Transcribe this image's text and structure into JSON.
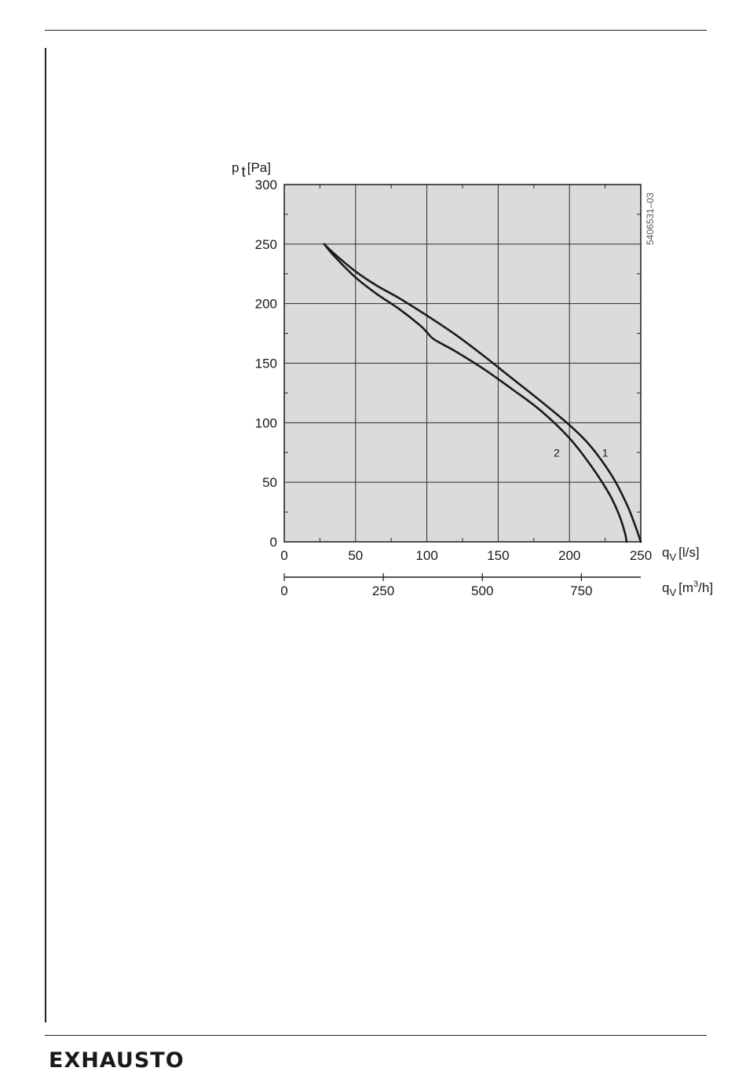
{
  "brand": {
    "logo_text": "EXHAUSTO"
  },
  "chart_data": {
    "type": "line",
    "figure_code": "5406531–03",
    "y_axis": {
      "label_main": "p",
      "label_sub": "t",
      "label_unit": "[Pa]",
      "ticks": [
        0,
        50,
        100,
        150,
        200,
        250,
        300
      ],
      "ylim": [
        0,
        300
      ]
    },
    "x_axis": {
      "label_main": "q",
      "label_sub": "V",
      "label_unit": "[l/s]",
      "ticks": [
        0,
        50,
        100,
        150,
        200,
        250
      ],
      "xlim": [
        0,
        250
      ]
    },
    "x_axis_secondary": {
      "label_main": "q",
      "label_sub": "V",
      "label_unit_pre": "[m",
      "label_unit_sup": "3",
      "label_unit_post": "/h]",
      "ticks": [
        0,
        250,
        500,
        750
      ],
      "xlim": [
        0,
        900
      ]
    },
    "grid": true,
    "series": [
      {
        "name": "1",
        "x": [
          28,
          35,
          50,
          65,
          80,
          100,
          120,
          140,
          160,
          180,
          200,
          215,
          230,
          240,
          246,
          250
        ],
        "y": [
          250,
          242,
          227,
          215,
          205,
          190,
          174,
          156,
          137,
          118,
          98,
          80,
          55,
          32,
          14,
          0
        ]
      },
      {
        "name": "2",
        "x": [
          28,
          35,
          50,
          65,
          80,
          95,
          100,
          105,
          120,
          140,
          160,
          180,
          200,
          215,
          228,
          235,
          239,
          240
        ],
        "y": [
          250,
          240,
          222,
          208,
          196,
          182,
          176,
          170,
          160,
          145,
          128,
          110,
          87,
          64,
          40,
          22,
          7,
          0
        ]
      }
    ]
  }
}
